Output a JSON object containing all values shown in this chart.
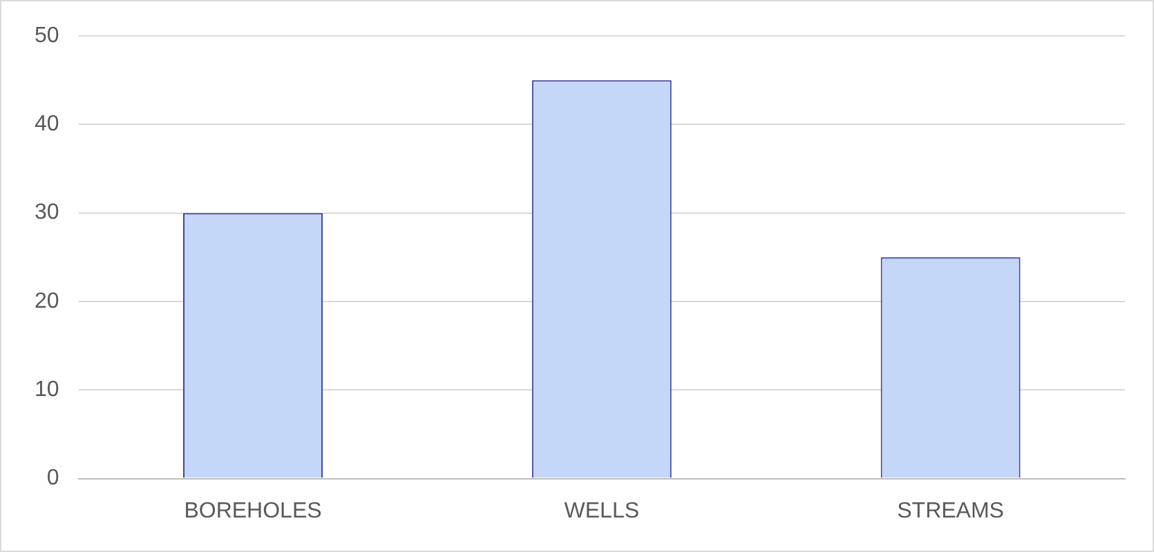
{
  "chart_data": {
    "type": "bar",
    "categories": [
      "BOREHOLES",
      "WELLS",
      "STREAMS"
    ],
    "values": [
      30,
      45,
      25
    ],
    "color": "#c5d7f8",
    "ylim": [
      0,
      50
    ],
    "yticks": [
      0,
      10,
      20,
      30,
      40,
      50
    ],
    "grid": "y",
    "legend": false
  }
}
